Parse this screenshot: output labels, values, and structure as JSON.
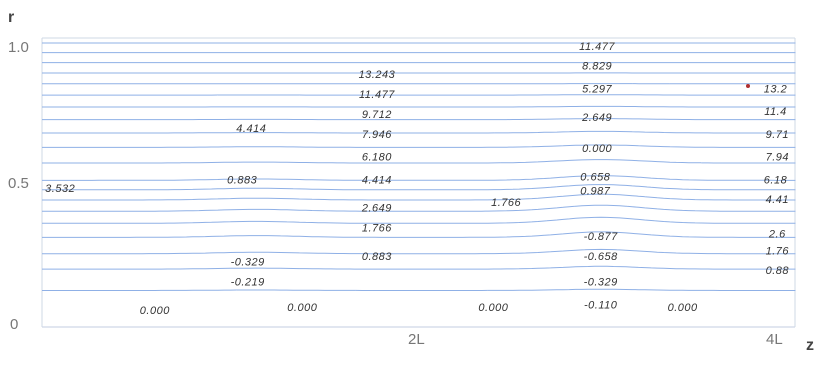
{
  "chart_data": {
    "type": "contour",
    "title": "",
    "xlabel": "z",
    "ylabel": "r",
    "x_ticks": [
      "2L",
      "4L"
    ],
    "y_ticks": [
      "0",
      "0.5",
      "1.0"
    ],
    "grid": false,
    "colors": {
      "contour": "#8fb0e6",
      "labels": "#333333",
      "frame": "#cfd8e6"
    },
    "contour_labels": [
      {
        "text": "13.243",
        "z": 1.84,
        "r": 0.89
      },
      {
        "text": "11.477",
        "z": 1.84,
        "r": 0.82
      },
      {
        "text": "9.712",
        "z": 1.84,
        "r": 0.75
      },
      {
        "text": "7.946",
        "z": 1.84,
        "r": 0.68
      },
      {
        "text": "6.180",
        "z": 1.84,
        "r": 0.6
      },
      {
        "text": "4.414",
        "z": 1.84,
        "r": 0.52
      },
      {
        "text": "2.649",
        "z": 1.84,
        "r": 0.42
      },
      {
        "text": "1.766",
        "z": 1.84,
        "r": 0.35
      },
      {
        "text": "0.883",
        "z": 1.84,
        "r": 0.25
      },
      {
        "text": "11.477",
        "z": 3.05,
        "r": 0.99
      },
      {
        "text": "8.829",
        "z": 3.05,
        "r": 0.92
      },
      {
        "text": "5.297",
        "z": 3.05,
        "r": 0.84
      },
      {
        "text": "2.649",
        "z": 3.05,
        "r": 0.74
      },
      {
        "text": "0.000",
        "z": 3.05,
        "r": 0.63
      },
      {
        "text": "0.658",
        "z": 3.04,
        "r": 0.53
      },
      {
        "text": "0.987",
        "z": 3.04,
        "r": 0.48
      },
      {
        "text": "-0.877",
        "z": 3.07,
        "r": 0.32
      },
      {
        "text": "-0.658",
        "z": 3.07,
        "r": 0.25
      },
      {
        "text": "-0.329",
        "z": 3.07,
        "r": 0.16
      },
      {
        "text": "-0.110",
        "z": 3.07,
        "r": 0.08
      },
      {
        "text": "1.766",
        "z": 2.55,
        "r": 0.44
      },
      {
        "text": "4.414",
        "z": 1.15,
        "r": 0.7
      },
      {
        "text": "0.883",
        "z": 1.1,
        "r": 0.52
      },
      {
        "text": "-0.329",
        "z": 1.13,
        "r": 0.23
      },
      {
        "text": "-0.219",
        "z": 1.13,
        "r": 0.16
      },
      {
        "text": "3.532",
        "z": 0.1,
        "r": 0.49
      },
      {
        "text": "0.000",
        "z": 0.62,
        "r": 0.06
      },
      {
        "text": "0.000",
        "z": 1.43,
        "r": 0.07
      },
      {
        "text": "0.000",
        "z": 2.48,
        "r": 0.07
      },
      {
        "text": "0.000",
        "z": 3.52,
        "r": 0.07
      },
      {
        "text": "13.2",
        "z": 4.03,
        "r": 0.84
      },
      {
        "text": "11.4",
        "z": 4.03,
        "r": 0.76
      },
      {
        "text": "9.71",
        "z": 4.04,
        "r": 0.68
      },
      {
        "text": "7.94",
        "z": 4.04,
        "r": 0.6
      },
      {
        "text": "6.18",
        "z": 4.03,
        "r": 0.52
      },
      {
        "text": "4.41",
        "z": 4.04,
        "r": 0.45
      },
      {
        "text": "2.6",
        "z": 4.04,
        "r": 0.33
      },
      {
        "text": "1.76",
        "z": 4.04,
        "r": 0.27
      },
      {
        "text": "0.88",
        "z": 4.04,
        "r": 0.2
      }
    ]
  }
}
